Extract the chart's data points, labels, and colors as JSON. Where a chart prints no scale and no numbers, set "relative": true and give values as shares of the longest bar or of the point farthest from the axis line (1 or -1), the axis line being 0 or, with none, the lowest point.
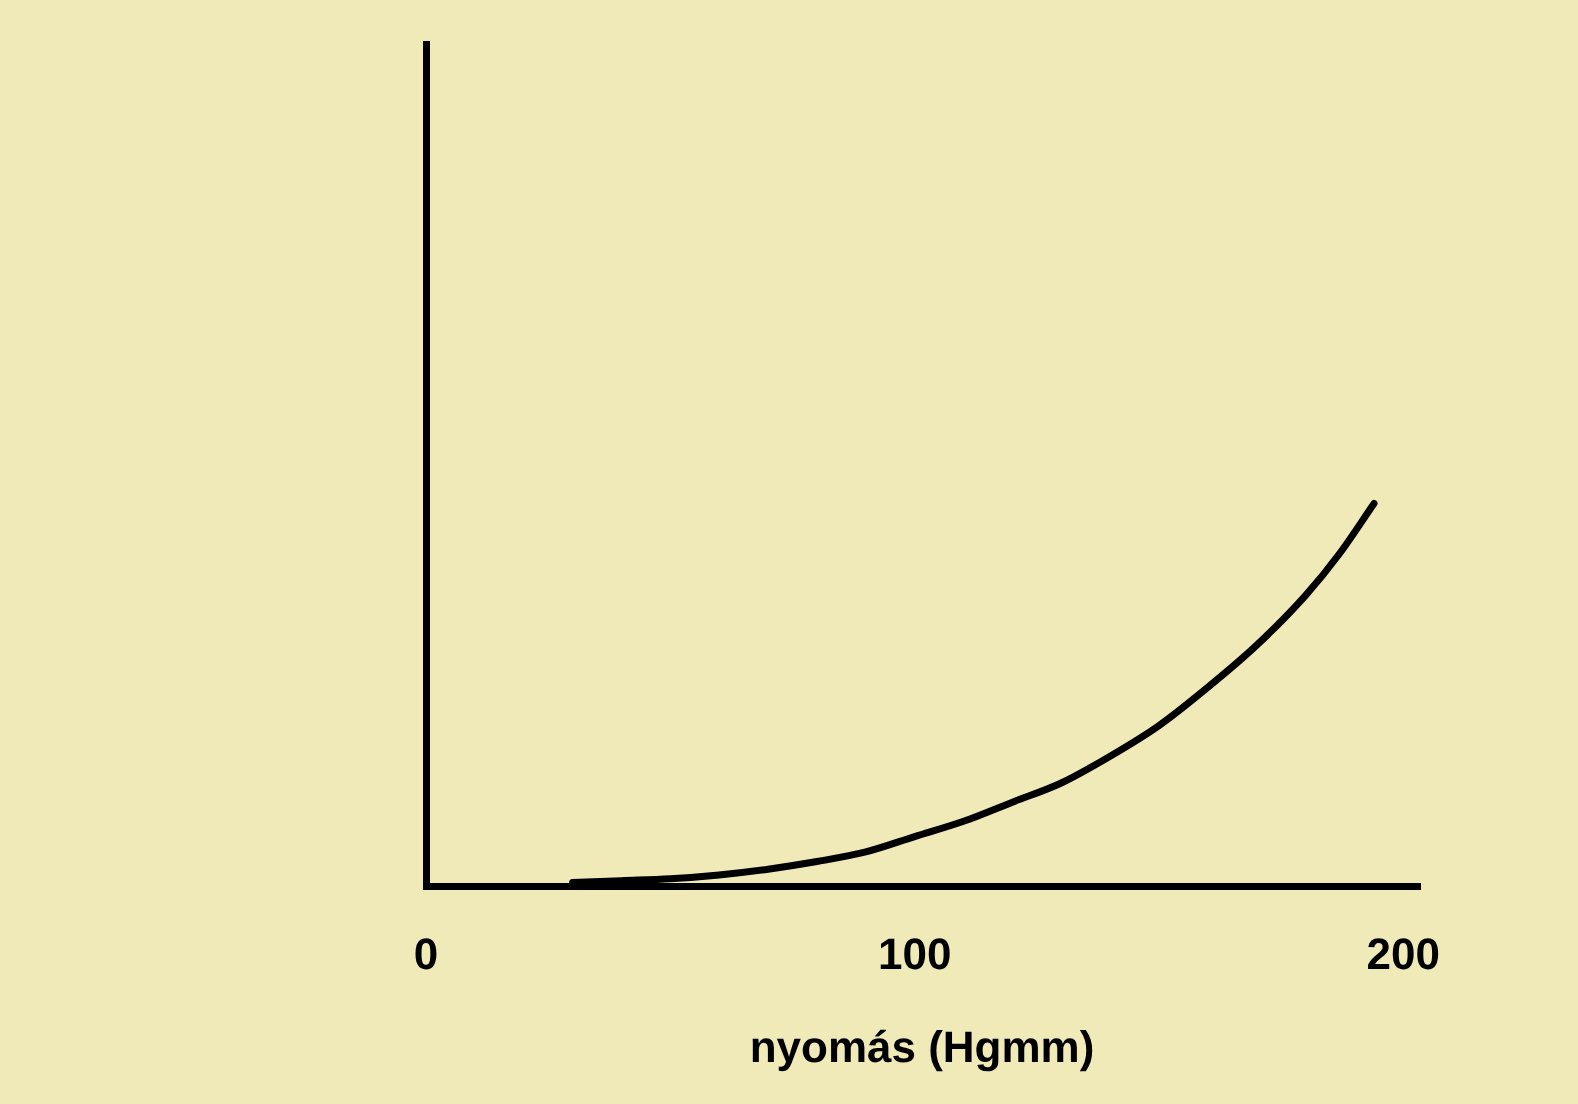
{
  "chart_data": {
    "type": "line",
    "relative": true,
    "xlabel": "nyomás (Hgmm)",
    "xlim": [
      0,
      203
    ],
    "xticks": [
      0,
      100,
      200
    ],
    "tick_labels": "x",
    "grid": false,
    "legend": false,
    "marker": "none",
    "line_style": "solid",
    "series": [
      {
        "color": "#000000",
        "x": [
          30,
          40,
          50,
          60,
          70,
          80,
          90,
          100,
          110,
          120,
          130,
          140,
          150,
          160,
          170,
          180,
          187,
          194
        ],
        "values": [
          0.01,
          0.015,
          0.02,
          0.03,
          0.045,
          0.065,
          0.09,
          0.13,
          0.17,
          0.22,
          0.27,
          0.34,
          0.42,
          0.52,
          0.63,
          0.76,
          0.87,
          1
        ]
      }
    ]
  }
}
